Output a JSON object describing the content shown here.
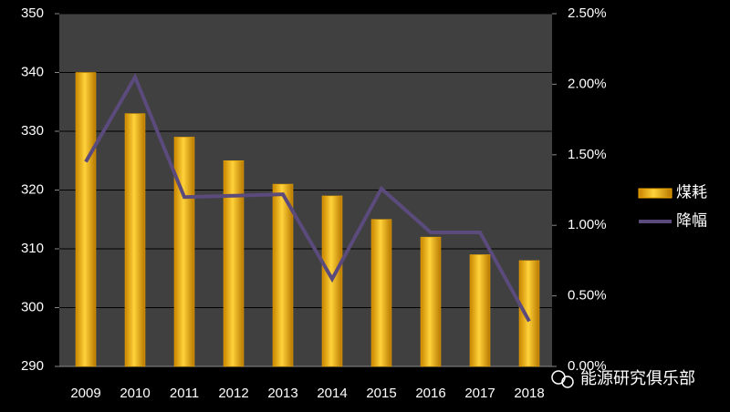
{
  "chart_data": {
    "type": "bar",
    "categories": [
      "2009",
      "2010",
      "2011",
      "2012",
      "2013",
      "2014",
      "2015",
      "2016",
      "2017",
      "2018"
    ],
    "series": [
      {
        "name": "煤耗",
        "color": "#f0a800",
        "values": [
          340,
          333,
          329,
          325,
          321,
          319,
          315,
          312,
          309,
          308
        ]
      },
      {
        "name": "降幅",
        "color": "#5b4a7c",
        "type": "line",
        "axis": "y2",
        "values": [
          1.45,
          2.05,
          1.2,
          1.21,
          1.22,
          0.62,
          1.26,
          0.95,
          0.95,
          0.32
        ]
      }
    ],
    "ylim": [
      290,
      350
    ],
    "yticks": [
      290,
      300,
      310,
      320,
      330,
      340,
      350
    ],
    "y2lim": [
      0,
      2.5
    ],
    "y2ticks": [
      {
        "value": 0,
        "label": "0.00%"
      },
      {
        "value": 0.5,
        "label": "0.50%"
      },
      {
        "value": 1,
        "label": "1.00%"
      },
      {
        "value": 1.5,
        "label": "1.50%"
      },
      {
        "value": 2,
        "label": "2.00%"
      },
      {
        "value": 2.5,
        "label": "2.50%"
      }
    ],
    "grid": true,
    "legend": "right",
    "watermark": "能源研究俱乐部"
  }
}
